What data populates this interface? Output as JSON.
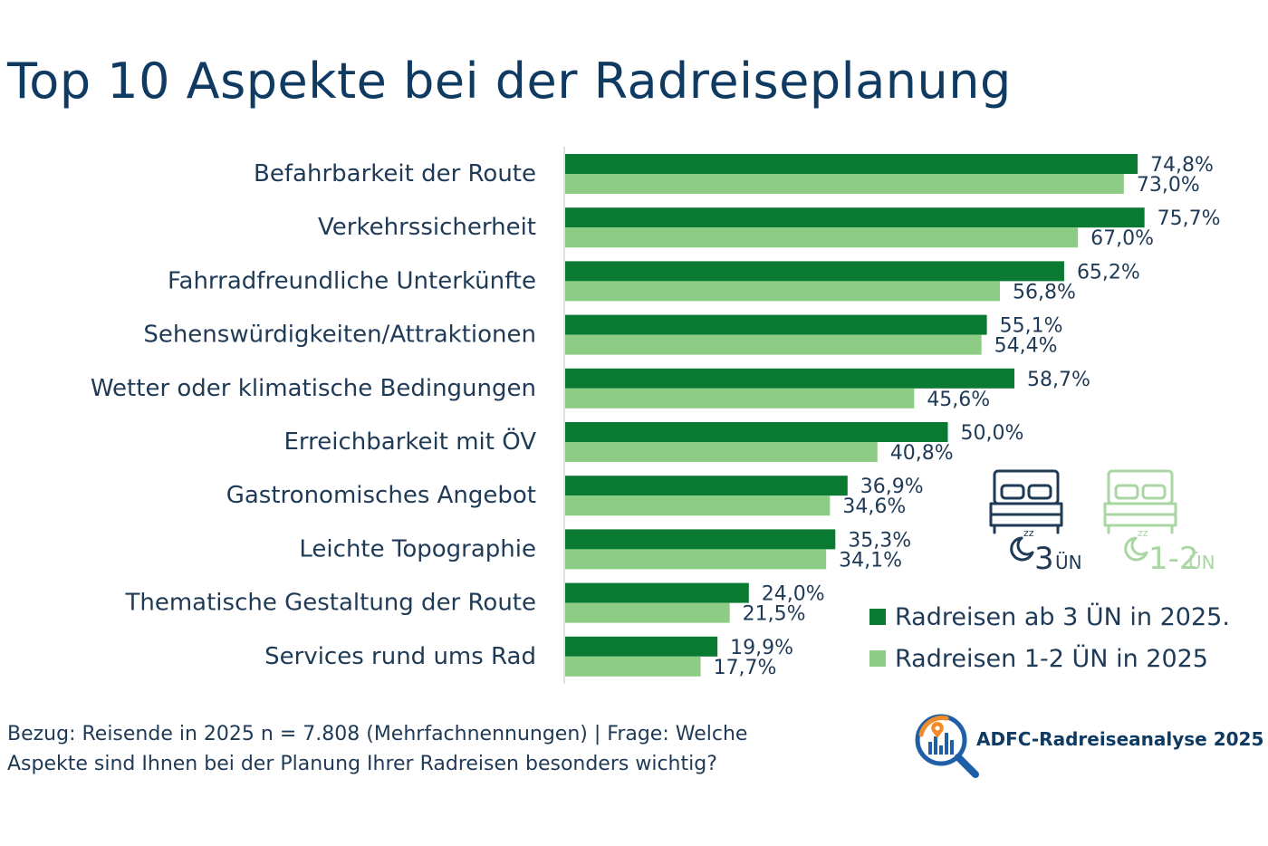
{
  "title": "Top 10 Aspekte bei der Radreiseplanung",
  "chart_data": {
    "type": "bar",
    "orientation": "horizontal",
    "title": "Top 10 Aspekte bei der Radreiseplanung",
    "categories": [
      "Befahrbarkeit der Route",
      "Verkehrssicherheit ",
      "Fahrradfreundliche Unterkünfte",
      "Sehenswürdigkeiten/Attraktionen",
      "Wetter oder klimatische Bedingungen ",
      "Erreichbarkeit mit ÖV",
      "Gastronomisches Angebot",
      "Leichte Topographie ",
      "Thematische Gestaltung der Route ",
      "Services rund ums Rad"
    ],
    "series": [
      {
        "name": "Radreisen ab 3 ÜN in 2025.",
        "color": "#0a7a33",
        "values": [
          74.8,
          75.7,
          65.2,
          55.1,
          58.7,
          50.0,
          36.9,
          35.3,
          24.0,
          19.9
        ],
        "labels": [
          "74,8%",
          "75,7%",
          "65,2%",
          "55,1%",
          "58,7%",
          "50,0%",
          "36,9%",
          "35,3%",
          "24,0%",
          "19,9%"
        ]
      },
      {
        "name": "Radreisen 1-2 ÜN in 2025",
        "color": "#8dcc85",
        "values": [
          73.0,
          67.0,
          56.8,
          54.4,
          45.6,
          40.8,
          34.6,
          34.1,
          21.5,
          17.7
        ],
        "labels": [
          "73,0%",
          "67,0%",
          "56,8%",
          "54,4%",
          "45,6%",
          "40,8%",
          "34,6%",
          "34,1%",
          "21,5%",
          "17,7%"
        ]
      }
    ],
    "xlim": [
      0,
      100
    ],
    "xlabel": "",
    "ylabel": "",
    "grid": false,
    "legend_position": "bottom-right"
  },
  "legend": [
    {
      "label": "Radreisen ab 3 ÜN in 2025.",
      "color": "#0a7a33"
    },
    {
      "label": "Radreisen 1-2 ÜN in 2025",
      "color": "#8dcc85"
    }
  ],
  "icons": {
    "left": {
      "name": "bed-sleep-icon",
      "caption_num": "3",
      "caption_unit": "ÜN",
      "color": "#1f3a56"
    },
    "right": {
      "name": "bed-sleep-icon",
      "caption_num": "1-2",
      "caption_unit": "ÜN",
      "color": "#a9d6a3"
    }
  },
  "footnote": {
    "line1": "Bezug: Reisende in 2025 n = 7.808 (Mehrfachnennungen) | Frage: Welche",
    "line2": "Aspekte sind Ihnen bei der Planung Ihrer Radreisen besonders wichtig?"
  },
  "brand": {
    "text": "ADFC-Radreiseanalyse 2025",
    "icon": "magnifier-chart-logo-icon"
  }
}
